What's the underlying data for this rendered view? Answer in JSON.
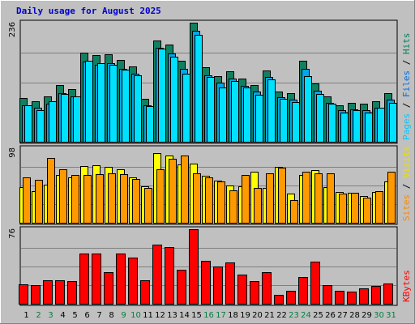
{
  "chart_data": {
    "type": "bar",
    "title": "Daily usage for August 2025",
    "categories": [
      "1",
      "2",
      "3",
      "4",
      "5",
      "6",
      "7",
      "8",
      "9",
      "10",
      "11",
      "12",
      "13",
      "14",
      "15",
      "16",
      "17",
      "18",
      "19",
      "20",
      "21",
      "22",
      "23",
      "24",
      "25",
      "26",
      "27",
      "28",
      "29",
      "30",
      "31"
    ],
    "weekend_days": [
      "2",
      "3",
      "9",
      "10",
      "16",
      "17",
      "23",
      "24",
      "30",
      "31"
    ],
    "panels": [
      {
        "id": "hits",
        "ylim": [
          0,
          236
        ],
        "ymax_label": "236",
        "legend": [
          {
            "text": "Pages",
            "color": "#00c8ff"
          },
          {
            "text": " / ",
            "color": "#000000"
          },
          {
            "text": "Files",
            "color": "#0070e0"
          },
          {
            "text": " / ",
            "color": "#000000"
          },
          {
            "text": "Hits",
            "color": "#008060"
          }
        ],
        "series": [
          {
            "name": "Hits",
            "color": "#108060",
            "values": [
              86,
              81,
              90,
              112,
              105,
              177,
              172,
              173,
              162,
              150,
              85,
              200,
              192,
              160,
              236,
              148,
              130,
              140,
              125,
              113,
              142,
              100,
              96,
              160,
              115,
              90,
              73,
              77,
              75,
              80,
              97
            ]
          },
          {
            "name": "Files",
            "color": "#00a8e8",
            "values": [
              72,
              68,
              76,
              96,
              90,
              159,
              153,
              156,
              145,
              135,
              72,
              187,
              175,
              145,
              220,
              131,
              117,
              125,
              110,
              100,
              128,
              88,
              84,
              145,
              101,
              77,
              62,
              65,
              62,
              67,
              84
            ]
          },
          {
            "name": "Pages",
            "color": "#00e0ff",
            "values": [
              72,
              62,
              80,
              95,
              90,
              160,
              155,
              152,
              143,
              132,
              70,
              185,
              168,
              135,
              212,
              128,
              108,
              120,
              107,
              93,
              123,
              85,
              78,
              130,
              95,
              75,
              57,
              63,
              58,
              67,
              77
            ]
          }
        ]
      },
      {
        "id": "visits",
        "ylim": [
          0,
          98
        ],
        "ymax_label": "98",
        "legend": [
          {
            "text": "Sites",
            "color": "#ff8800"
          },
          {
            "text": " / ",
            "color": "#000000"
          },
          {
            "text": "Visits",
            "color": "#e8e000"
          }
        ],
        "series": [
          {
            "name": "Visits",
            "color": "#ffff00",
            "values": [
              47,
              42,
              50,
              63,
              60,
              75,
              76,
              74,
              70,
              60,
              48,
              92,
              88,
              77,
              78,
              62,
              55,
              49,
              48,
              67,
              46,
              73,
              38,
              63,
              69,
              47,
              40,
              39,
              35,
              41,
              54
            ]
          },
          {
            "name": "Sites",
            "color": "#ff9900",
            "values": [
              60,
              56,
              85,
              70,
              63,
              63,
              64,
              65,
              64,
              58,
              46,
              70,
              84,
              88,
              65,
              60,
              54,
              43,
              63,
              46,
              65,
              72,
              30,
              67,
              65,
              65,
              38,
              39,
              33,
              42,
              67
            ]
          }
        ]
      },
      {
        "id": "kbytes",
        "ylim": [
          0,
          76
        ],
        "ymax_label": "76",
        "legend": [
          {
            "text": "KBytes",
            "color": "#ff0000"
          }
        ],
        "series": [
          {
            "name": "KBytes",
            "color": "#ff0000",
            "values": [
              20,
              19,
              24,
              24,
              23,
              51,
              51,
              32,
              51,
              47,
              24,
              60,
              58,
              35,
              76,
              44,
              38,
              42,
              30,
              23,
              32,
              9,
              13,
              27,
              43,
              19,
              13,
              12,
              16,
              18,
              21
            ]
          }
        ]
      }
    ]
  }
}
